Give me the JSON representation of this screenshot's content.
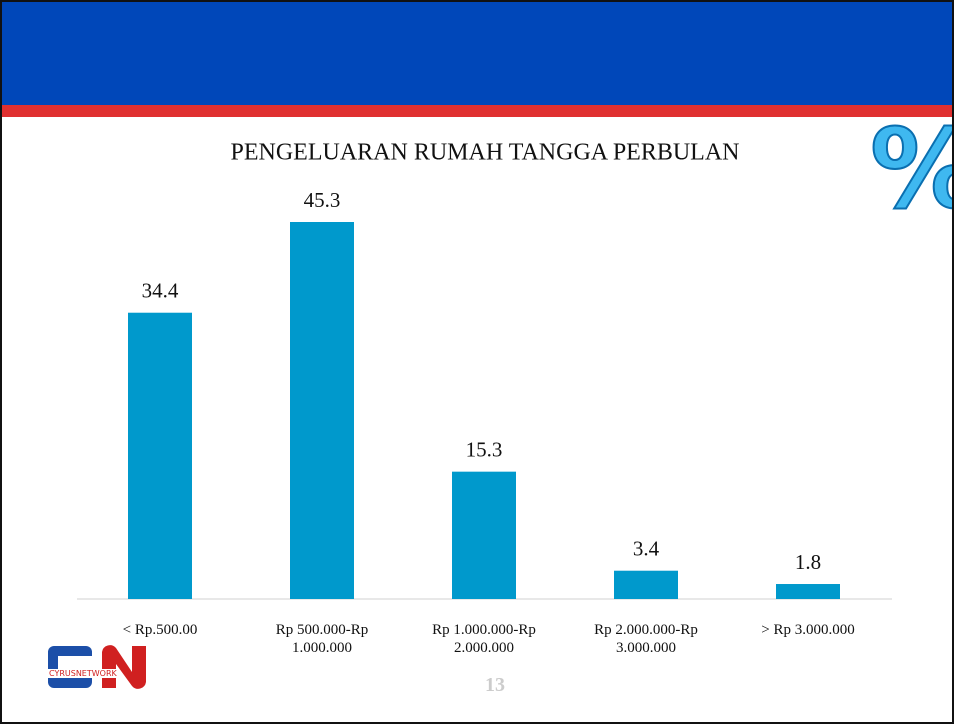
{
  "slide": {
    "logo_text": "CYRUSNETWORK",
    "page_number": "13",
    "percent_symbol": "%"
  },
  "chart_data": {
    "type": "bar",
    "title": "PENGELUARAN RUMAH TANGGA PERBULAN",
    "categories": [
      "< Rp.500.00",
      "Rp 500.000-Rp\n1.000.000",
      "Rp 1.000.000-Rp\n2.000.000",
      "Rp 2.000.000-Rp\n3.000.000",
      "> Rp 3.000.000"
    ],
    "values": [
      34.4,
      45.3,
      15.3,
      3.4,
      1.8
    ],
    "color": "#0099cc"
  }
}
